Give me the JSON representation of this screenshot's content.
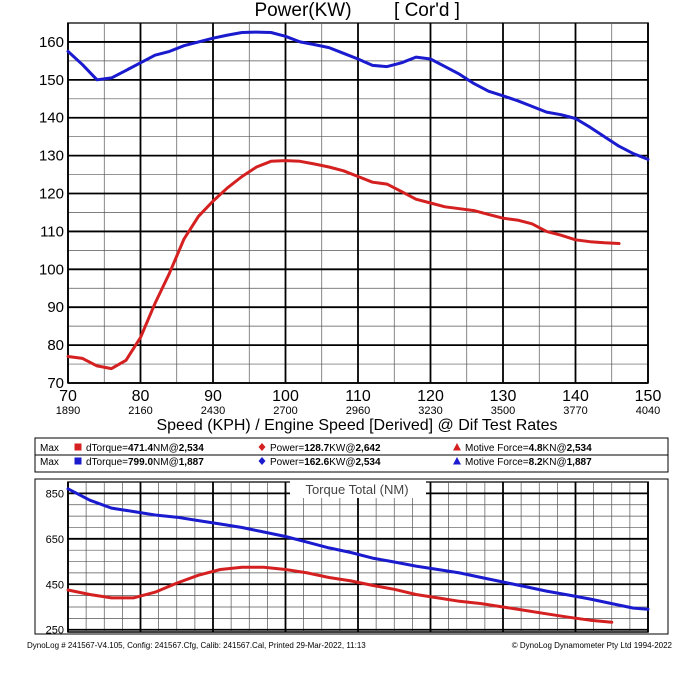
{
  "chart_data": [
    {
      "type": "line",
      "title": "Power(KW)",
      "title_extra": "[ Cor'd ]",
      "xlabel": "Speed (KPH) / Engine Speed [Derived] @ Dif Test Rates",
      "xlim": [
        70,
        150
      ],
      "ylim": [
        70,
        165
      ],
      "grid": true,
      "x_ticks": [
        {
          "kph": "70",
          "rpm": "1890"
        },
        {
          "kph": "80",
          "rpm": "2160"
        },
        {
          "kph": "90",
          "rpm": "2430"
        },
        {
          "kph": "100",
          "rpm": "2700"
        },
        {
          "kph": "110",
          "rpm": "2960"
        },
        {
          "kph": "120",
          "rpm": "3230"
        },
        {
          "kph": "130",
          "rpm": "3500"
        },
        {
          "kph": "140",
          "rpm": "3770"
        },
        {
          "kph": "150",
          "rpm": "4040"
        }
      ],
      "y_ticks": [
        70,
        80,
        90,
        100,
        110,
        120,
        130,
        140,
        150,
        160
      ],
      "series": [
        {
          "color": "#d42020",
          "x": [
            70,
            72,
            74,
            76,
            78,
            80,
            82,
            84,
            86,
            88,
            90,
            92,
            94,
            96,
            98,
            100,
            102,
            104,
            106,
            108,
            110,
            112,
            114,
            116,
            118,
            120,
            122,
            124,
            126,
            128,
            130,
            132,
            134,
            136,
            138,
            140,
            142,
            144,
            146
          ],
          "y": [
            77,
            76.5,
            74.5,
            73.8,
            76,
            82,
            91,
            99,
            108,
            114,
            118,
            121.5,
            124.5,
            127,
            128.5,
            128.7,
            128.5,
            127.8,
            127,
            126,
            124.5,
            123,
            122.5,
            120.5,
            118.5,
            117.5,
            116.5,
            116,
            115.5,
            114.5,
            113.5,
            113,
            112,
            110,
            109,
            107.8,
            107.3,
            107,
            106.8
          ]
        },
        {
          "color": "#1a1acf",
          "x": [
            70,
            72,
            74,
            76,
            78,
            80,
            82,
            84,
            86,
            88,
            90,
            92,
            94,
            96,
            98,
            100,
            102,
            104,
            106,
            108,
            110,
            112,
            114,
            116,
            118,
            120,
            122,
            124,
            126,
            128,
            130,
            132,
            134,
            136,
            138,
            140,
            142,
            144,
            146,
            148,
            150
          ],
          "y": [
            157.5,
            154,
            150,
            150.5,
            152.5,
            154.5,
            156.5,
            157.5,
            159,
            160,
            161,
            161.8,
            162.5,
            162.6,
            162.5,
            161.5,
            160,
            159.3,
            158.5,
            157,
            155.5,
            153.8,
            153.5,
            154.5,
            156,
            155.5,
            153.5,
            151.5,
            149,
            147,
            145.8,
            144.5,
            143,
            141.5,
            140.8,
            139.8,
            137.5,
            135,
            132.5,
            130.5,
            129
          ]
        }
      ]
    },
    {
      "type": "line",
      "title": "Torque Total (NM)",
      "xlim": [
        70,
        150
      ],
      "ylim": [
        240,
        900
      ],
      "grid": true,
      "y_ticks": [
        250,
        450,
        650,
        850
      ],
      "series": [
        {
          "color": "#d42020",
          "x": [
            70,
            73,
            76,
            79,
            82,
            85,
            88,
            91,
            94,
            97,
            100,
            103,
            106,
            109,
            112,
            115,
            118,
            121,
            124,
            127,
            130,
            133,
            136,
            139,
            142,
            145
          ],
          "y": [
            425,
            405,
            390,
            390,
            415,
            455,
            490,
            515,
            525,
            525,
            515,
            500,
            480,
            465,
            445,
            428,
            405,
            390,
            375,
            365,
            350,
            335,
            320,
            305,
            292,
            283
          ]
        },
        {
          "color": "#1a1acf",
          "x": [
            70,
            73,
            76,
            79,
            82,
            85,
            88,
            91,
            94,
            97,
            100,
            103,
            106,
            109,
            112,
            115,
            118,
            121,
            124,
            127,
            130,
            133,
            136,
            139,
            142,
            145,
            148,
            150
          ],
          "y": [
            870,
            820,
            785,
            770,
            755,
            745,
            730,
            715,
            700,
            680,
            660,
            635,
            610,
            590,
            565,
            548,
            530,
            515,
            500,
            480,
            460,
            440,
            420,
            403,
            385,
            365,
            345,
            340
          ]
        }
      ]
    }
  ],
  "max_rows": [
    {
      "label": "Max",
      "torque": {
        "name": "dTorque=",
        "value": "471.4",
        "unit": "NM",
        "at": "@",
        "rpm": "2,534",
        "color": "#d42020"
      },
      "power": {
        "name": "Power=",
        "value": "128.7",
        "unit": "KW",
        "at": "@",
        "rpm": "2,642",
        "color": "#d42020"
      },
      "force": {
        "name": "Motive Force=",
        "value": "4.8",
        "unit": "KN",
        "at": "@",
        "rpm": "2,534",
        "color": "#d42020"
      }
    },
    {
      "label": "Max",
      "torque": {
        "name": "dTorque=",
        "value": "799.0",
        "unit": "NM",
        "at": "@",
        "rpm": "1,887",
        "color": "#1a1acf"
      },
      "power": {
        "name": "Power=",
        "value": "162.6",
        "unit": "KW",
        "at": "@",
        "rpm": "2,534",
        "color": "#1a1acf"
      },
      "force": {
        "name": "Motive Force=",
        "value": "8.2",
        "unit": "KN",
        "at": "@",
        "rpm": "1,887",
        "color": "#1a1acf"
      }
    }
  ],
  "footer": {
    "left": "DynoLog # 241567-V4.105, Config: 241567.Cfg, Calib: 241567.Cal, Printed 29-Mar-2022, 11:13",
    "right": "© DynoLog Dynamometer Pty Ltd 1994-2022"
  }
}
